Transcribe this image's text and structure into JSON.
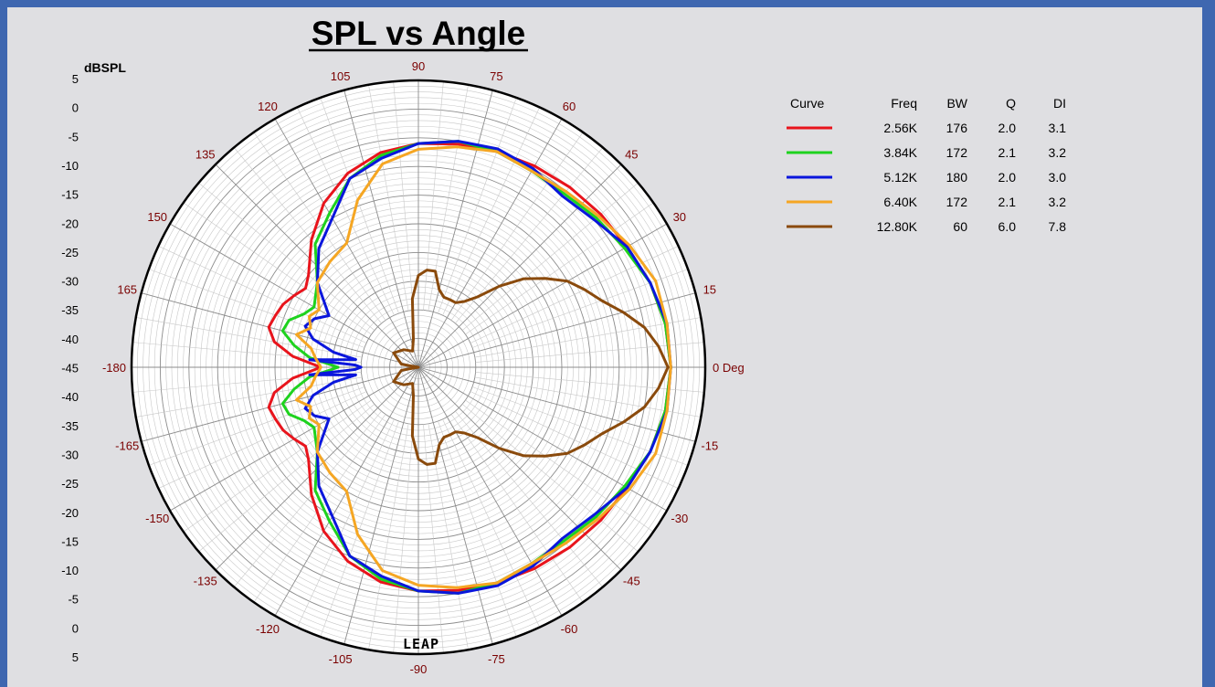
{
  "chart_data": {
    "type": "polar",
    "title": "SPL vs Angle",
    "radial_axis_label": "dBSPL",
    "angle_unit": "Deg",
    "radial_range": [
      -45,
      5
    ],
    "radial_ticks": [
      "5",
      "0",
      "-5",
      "-10",
      "-15",
      "-20",
      "-25",
      "-30",
      "-35",
      "-40",
      "-45",
      "-40",
      "-35",
      "-30",
      "-25",
      "-20",
      "-15",
      "-10",
      "-5",
      "0",
      "5"
    ],
    "angle_ticks": [
      {
        "angle": 0,
        "label": "0 Deg"
      },
      {
        "angle": 15,
        "label": "15"
      },
      {
        "angle": 30,
        "label": "30"
      },
      {
        "angle": 45,
        "label": "45"
      },
      {
        "angle": 60,
        "label": "60"
      },
      {
        "angle": 75,
        "label": "75"
      },
      {
        "angle": 90,
        "label": "90"
      },
      {
        "angle": 105,
        "label": "105"
      },
      {
        "angle": 120,
        "label": "120"
      },
      {
        "angle": 135,
        "label": "135"
      },
      {
        "angle": 150,
        "label": "150"
      },
      {
        "angle": 165,
        "label": "165"
      },
      {
        "angle": 180,
        "label": "-180"
      },
      {
        "angle": -15,
        "label": "-15"
      },
      {
        "angle": -30,
        "label": "-30"
      },
      {
        "angle": -45,
        "label": "-45"
      },
      {
        "angle": -60,
        "label": "-60"
      },
      {
        "angle": -75,
        "label": "-75"
      },
      {
        "angle": -90,
        "label": "-90"
      },
      {
        "angle": -105,
        "label": "-105"
      },
      {
        "angle": -120,
        "label": "-120"
      },
      {
        "angle": -135,
        "label": "-135"
      },
      {
        "angle": -150,
        "label": "-150"
      },
      {
        "angle": -165,
        "label": "-165"
      }
    ],
    "legend": {
      "headers": [
        "Curve",
        "Freq",
        "BW",
        "Q",
        "DI"
      ],
      "placement": "right"
    },
    "series": [
      {
        "freq": "2.56K",
        "bw": "176",
        "q": "2.0",
        "di": "3.1",
        "color": "#e8141c",
        "points": [
          [
            0,
            -1
          ],
          [
            10,
            -1.3
          ],
          [
            20,
            -2
          ],
          [
            30,
            -3
          ],
          [
            40,
            -3.5
          ],
          [
            50,
            -4
          ],
          [
            60,
            -4.5
          ],
          [
            70,
            -5
          ],
          [
            80,
            -5.5
          ],
          [
            90,
            -6
          ],
          [
            100,
            -7
          ],
          [
            110,
            -9
          ],
          [
            120,
            -12
          ],
          [
            130,
            -16
          ],
          [
            140,
            -20
          ],
          [
            145,
            -21
          ],
          [
            150,
            -20
          ],
          [
            155,
            -19
          ],
          [
            160,
            -18.5
          ],
          [
            165,
            -18
          ],
          [
            170,
            -19.5
          ],
          [
            175,
            -23
          ],
          [
            180,
            -28
          ]
        ]
      },
      {
        "freq": "3.84K",
        "bw": "172",
        "q": "2.1",
        "di": "3.2",
        "color": "#1ed21e",
        "points": [
          [
            0,
            -1
          ],
          [
            10,
            -1.3
          ],
          [
            20,
            -2
          ],
          [
            30,
            -3.5
          ],
          [
            40,
            -4.5
          ],
          [
            50,
            -5.5
          ],
          [
            60,
            -5.5
          ],
          [
            70,
            -5
          ],
          [
            80,
            -5
          ],
          [
            90,
            -6
          ],
          [
            100,
            -7.5
          ],
          [
            110,
            -10
          ],
          [
            120,
            -14
          ],
          [
            130,
            -17
          ],
          [
            140,
            -22
          ],
          [
            150,
            -24
          ],
          [
            155,
            -23
          ],
          [
            160,
            -21
          ],
          [
            165,
            -20.5
          ],
          [
            170,
            -23
          ],
          [
            175,
            -26
          ],
          [
            180,
            -31
          ]
        ]
      },
      {
        "freq": "5.12K",
        "bw": "180",
        "q": "2.0",
        "di": "3.0",
        "color": "#0a16dc",
        "points": [
          [
            0,
            -1
          ],
          [
            10,
            -1
          ],
          [
            20,
            -2
          ],
          [
            30,
            -3
          ],
          [
            40,
            -5
          ],
          [
            50,
            -6
          ],
          [
            60,
            -5
          ],
          [
            70,
            -4.5
          ],
          [
            80,
            -5
          ],
          [
            90,
            -6
          ],
          [
            100,
            -8
          ],
          [
            110,
            -10
          ],
          [
            120,
            -15
          ],
          [
            130,
            -18
          ],
          [
            140,
            -22
          ],
          [
            150,
            -27
          ],
          [
            155,
            -25
          ],
          [
            160,
            -24
          ],
          [
            165,
            -26
          ],
          [
            170,
            -30
          ],
          [
            173,
            -34
          ],
          [
            176,
            -26
          ],
          [
            178,
            -34
          ],
          [
            180,
            -35
          ]
        ]
      },
      {
        "freq": "6.40K",
        "bw": "172",
        "q": "2.1",
        "di": "3.2",
        "color": "#f5a623",
        "points": [
          [
            0,
            -1
          ],
          [
            10,
            -1
          ],
          [
            20,
            -1
          ],
          [
            30,
            -2.5
          ],
          [
            40,
            -4
          ],
          [
            50,
            -5
          ],
          [
            60,
            -5.5
          ],
          [
            70,
            -5
          ],
          [
            80,
            -6
          ],
          [
            90,
            -7
          ],
          [
            100,
            -9
          ],
          [
            110,
            -14
          ],
          [
            120,
            -20
          ],
          [
            130,
            -21
          ],
          [
            140,
            -22
          ],
          [
            150,
            -25
          ],
          [
            155,
            -24
          ],
          [
            160,
            -25
          ],
          [
            165,
            -23
          ],
          [
            170,
            -26
          ],
          [
            175,
            -27
          ],
          [
            180,
            -28
          ]
        ]
      },
      {
        "freq": "12.80K",
        "bw": "60",
        "q": "6.0",
        "di": "7.8",
        "color": "#8a4a0c",
        "points": [
          [
            0,
            -1.5
          ],
          [
            5,
            -3
          ],
          [
            10,
            -5
          ],
          [
            15,
            -8
          ],
          [
            20,
            -11
          ],
          [
            25,
            -13
          ],
          [
            30,
            -15
          ],
          [
            35,
            -18
          ],
          [
            40,
            -21
          ],
          [
            45,
            -25
          ],
          [
            50,
            -29
          ],
          [
            55,
            -31
          ],
          [
            60,
            -32
          ],
          [
            65,
            -32
          ],
          [
            70,
            -32
          ],
          [
            75,
            -31
          ],
          [
            80,
            -28
          ],
          [
            85,
            -28
          ],
          [
            90,
            -29
          ],
          [
            95,
            -33
          ],
          [
            100,
            -40
          ],
          [
            110,
            -42
          ],
          [
            130,
            -41
          ],
          [
            150,
            -40
          ],
          [
            170,
            -42
          ],
          [
            180,
            -45
          ]
        ]
      }
    ]
  },
  "logo": "LEAP"
}
